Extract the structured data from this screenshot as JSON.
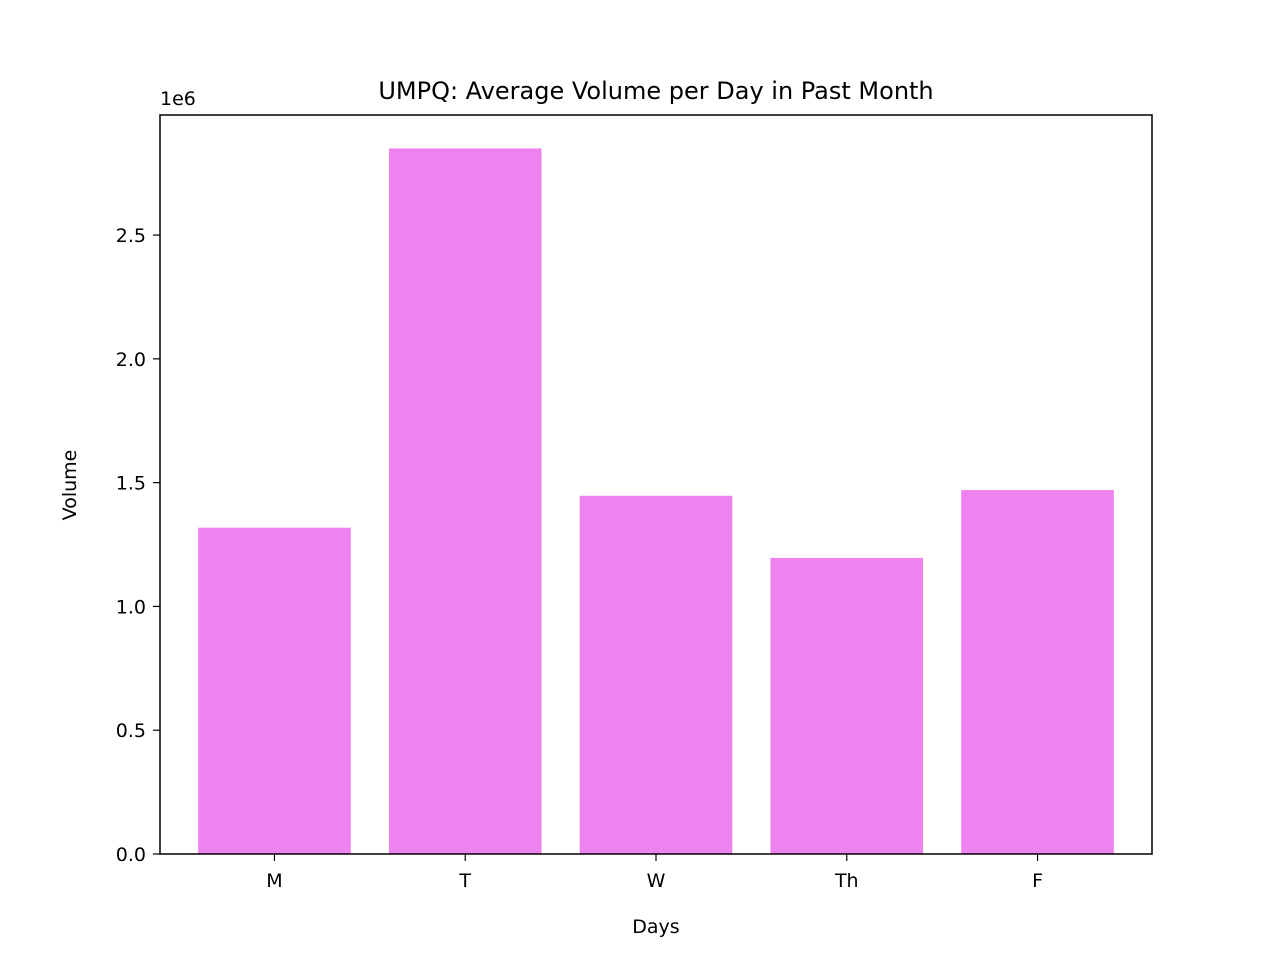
{
  "chart_data": {
    "type": "bar",
    "title": "UMPQ: Average Volume per Day in Past Month",
    "xlabel": "Days",
    "ylabel": "Volume",
    "categories": [
      "M",
      "T",
      "W",
      "Th",
      "F"
    ],
    "values": [
      1318000,
      2850000,
      1447000,
      1196000,
      1470000
    ],
    "ylim": [
      0,
      2985000
    ],
    "yticks": [
      0,
      500000,
      1000000,
      1500000,
      2000000,
      2500000
    ],
    "ytick_labels": [
      "0.0",
      "0.5",
      "1.0",
      "1.5",
      "2.0",
      "2.5"
    ],
    "y_offset_label": "1e6",
    "bar_color": "#ee82ee",
    "grid": false,
    "legend": "none"
  }
}
